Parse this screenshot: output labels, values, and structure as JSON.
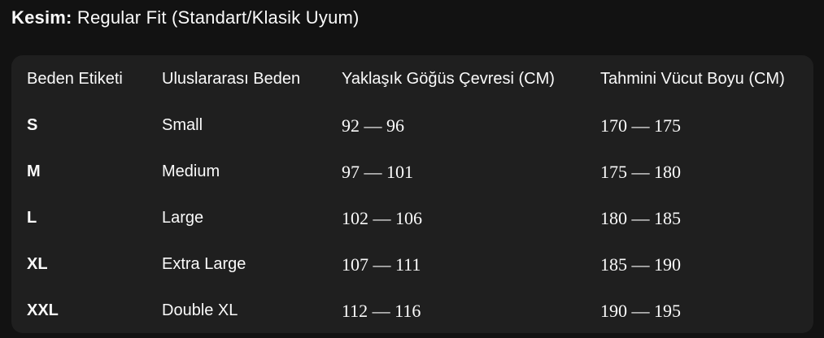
{
  "title": {
    "label": "Kesim:",
    "value": "Regular Fit (Standart/Klasik Uyum)"
  },
  "table": {
    "headers": [
      "Beden Etiketi",
      "Uluslararası Beden",
      "Yaklaşık Göğüs Çevresi (CM)",
      "Tahmini Vücut Boyu (CM)"
    ],
    "rows": [
      {
        "size": "S",
        "intl": "Small",
        "chest": "92 — 96",
        "height": "170 — 175"
      },
      {
        "size": "M",
        "intl": "Medium",
        "chest": "97 — 101",
        "height": "175 — 180"
      },
      {
        "size": "L",
        "intl": "Large",
        "chest": "102 — 106",
        "height": "180 — 185"
      },
      {
        "size": "XL",
        "intl": "Extra Large",
        "chest": "107 — 111",
        "height": "185 — 190"
      },
      {
        "size": "XXL",
        "intl": "Double XL",
        "chest": "112 — 116",
        "height": "190 — 195"
      }
    ]
  },
  "colors": {
    "page_bg": "#121212",
    "panel_bg": "#1f1f1f",
    "text": "#fafafa"
  }
}
